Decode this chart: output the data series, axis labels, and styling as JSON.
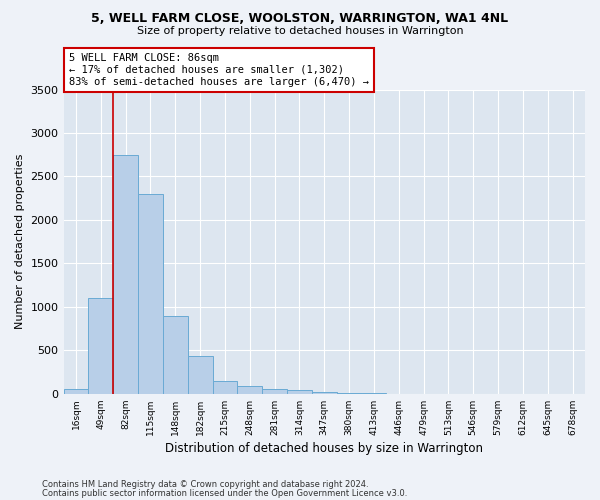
{
  "title1": "5, WELL FARM CLOSE, WOOLSTON, WARRINGTON, WA1 4NL",
  "title2": "Size of property relative to detached houses in Warrington",
  "xlabel": "Distribution of detached houses by size in Warrington",
  "ylabel": "Number of detached properties",
  "bins": [
    "16sqm",
    "49sqm",
    "82sqm",
    "115sqm",
    "148sqm",
    "182sqm",
    "215sqm",
    "248sqm",
    "281sqm",
    "314sqm",
    "347sqm",
    "380sqm",
    "413sqm",
    "446sqm",
    "479sqm",
    "513sqm",
    "546sqm",
    "579sqm",
    "612sqm",
    "645sqm",
    "678sqm"
  ],
  "values": [
    50,
    1100,
    2750,
    2300,
    900,
    430,
    150,
    90,
    60,
    40,
    20,
    10,
    5,
    3,
    2,
    1,
    1,
    0,
    0,
    0,
    0
  ],
  "bar_color": "#b8cfe8",
  "bar_edge_color": "#6aaad4",
  "vline_color": "#cc0000",
  "annotation_text": "5 WELL FARM CLOSE: 86sqm\n← 17% of detached houses are smaller (1,302)\n83% of semi-detached houses are larger (6,470) →",
  "annotation_box_color": "white",
  "annotation_box_edge": "#cc0000",
  "footer1": "Contains HM Land Registry data © Crown copyright and database right 2024.",
  "footer2": "Contains public sector information licensed under the Open Government Licence v3.0.",
  "bg_color": "#eef2f8",
  "plot_bg_color": "#dde6f0",
  "ylim": [
    0,
    3500
  ],
  "yticks": [
    0,
    500,
    1000,
    1500,
    2000,
    2500,
    3000,
    3500
  ]
}
